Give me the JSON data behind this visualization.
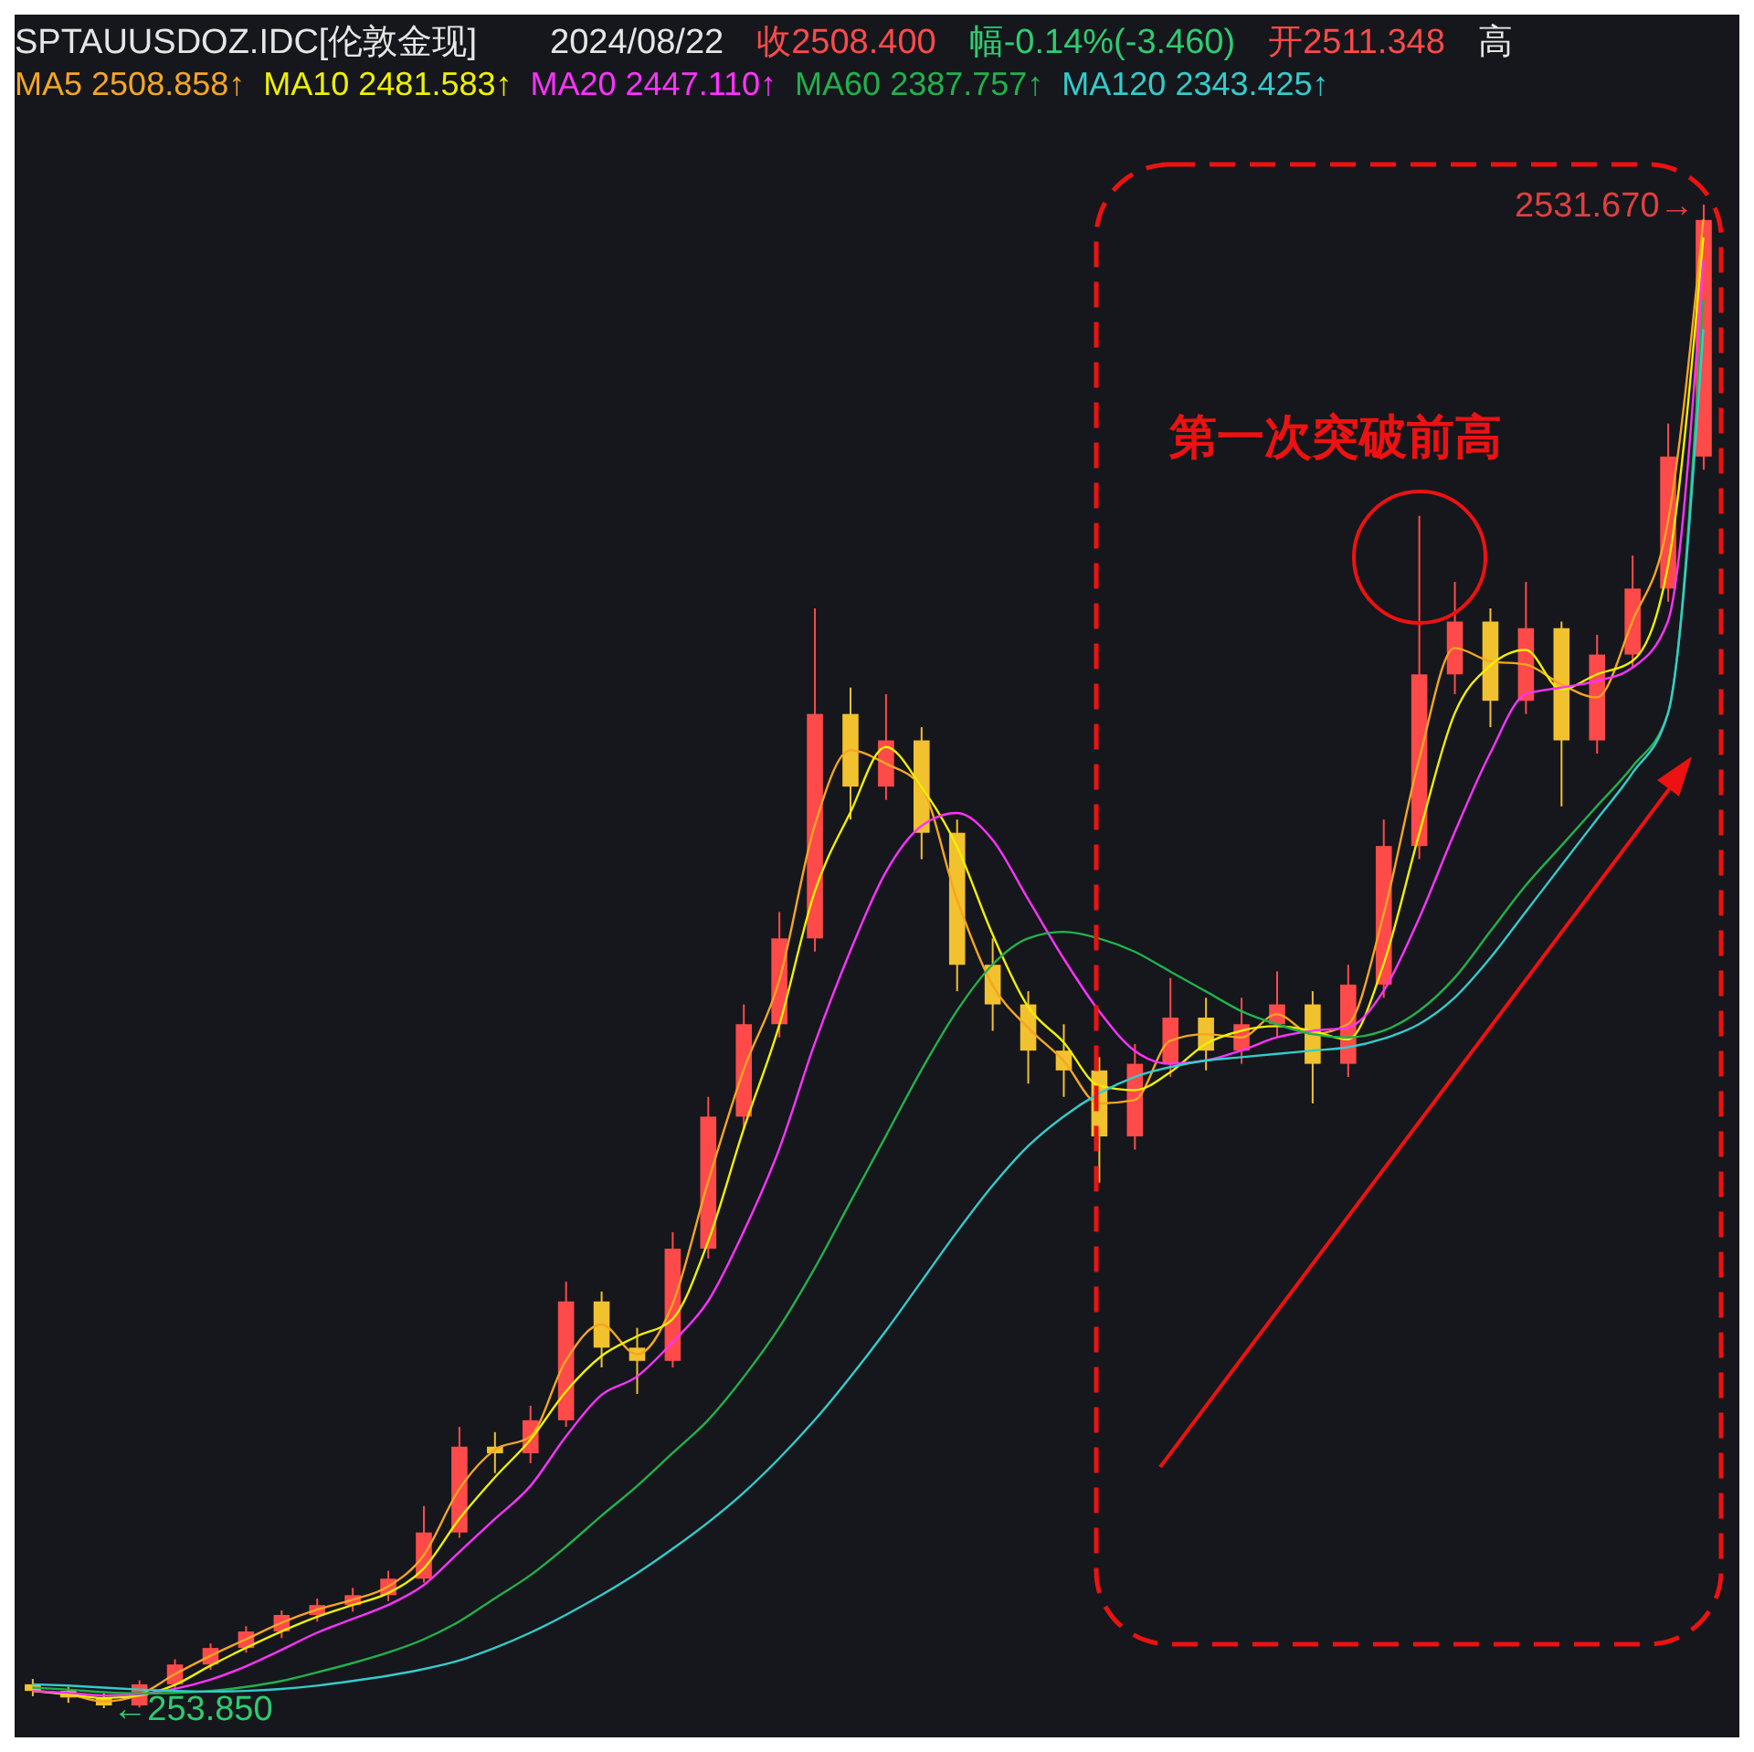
{
  "chart_data": {
    "type": "candlestick",
    "legend": "top left",
    "tick_labels": false,
    "categories": [
      null,
      null,
      null,
      null,
      null,
      null,
      null,
      null,
      null,
      null,
      null,
      null,
      null,
      null,
      null,
      null,
      null,
      null,
      null,
      null,
      null,
      null,
      null,
      null,
      null,
      null,
      null,
      null,
      null,
      null,
      null,
      null,
      null,
      null,
      null,
      null,
      null,
      null,
      null,
      null,
      null,
      null,
      null,
      null,
      null,
      null,
      null,
      null
    ],
    "ohlc": [
      [
        290,
        298,
        272,
        280
      ],
      [
        280,
        286,
        262,
        270
      ],
      [
        270,
        276,
        253.85,
        258
      ],
      [
        258,
        296,
        255,
        290
      ],
      [
        290,
        328,
        284,
        320
      ],
      [
        320,
        352,
        312,
        345
      ],
      [
        345,
        378,
        338,
        370
      ],
      [
        370,
        402,
        360,
        395
      ],
      [
        395,
        420,
        385,
        410
      ],
      [
        410,
        436,
        400,
        425
      ],
      [
        425,
        462,
        416,
        450
      ],
      [
        450,
        560,
        444,
        520
      ],
      [
        520,
        680,
        512,
        650
      ],
      [
        650,
        672,
        610,
        640
      ],
      [
        640,
        712,
        625,
        690
      ],
      [
        690,
        900,
        680,
        870
      ],
      [
        870,
        885,
        770,
        800
      ],
      [
        800,
        830,
        730,
        780
      ],
      [
        780,
        975,
        770,
        950
      ],
      [
        950,
        1180,
        935,
        1150
      ],
      [
        1150,
        1320,
        1130,
        1290
      ],
      [
        1290,
        1460,
        1270,
        1420
      ],
      [
        1420,
        1920,
        1400,
        1760
      ],
      [
        1760,
        1800,
        1600,
        1650
      ],
      [
        1650,
        1790,
        1630,
        1720
      ],
      [
        1720,
        1740,
        1540,
        1580
      ],
      [
        1580,
        1600,
        1340,
        1380
      ],
      [
        1380,
        1420,
        1280,
        1320
      ],
      [
        1320,
        1340,
        1200,
        1250
      ],
      [
        1250,
        1290,
        1180,
        1220
      ],
      [
        1220,
        1240,
        1050,
        1120
      ],
      [
        1120,
        1260,
        1100,
        1230
      ],
      [
        1230,
        1360,
        1210,
        1300
      ],
      [
        1300,
        1330,
        1220,
        1250
      ],
      [
        1250,
        1330,
        1230,
        1290
      ],
      [
        1290,
        1370,
        1270,
        1320
      ],
      [
        1320,
        1340,
        1170,
        1230
      ],
      [
        1230,
        1380,
        1210,
        1350
      ],
      [
        1350,
        1600,
        1330,
        1560
      ],
      [
        1560,
        2060,
        1540,
        1820
      ],
      [
        1820,
        1960,
        1790,
        1900
      ],
      [
        1900,
        1920,
        1740,
        1780
      ],
      [
        1780,
        1960,
        1760,
        1890
      ],
      [
        1890,
        1900,
        1620,
        1720
      ],
      [
        1720,
        1880,
        1700,
        1850
      ],
      [
        1850,
        2000,
        1830,
        1950
      ],
      [
        1950,
        2200,
        1930,
        2150
      ],
      [
        2150,
        2531.67,
        2130,
        2508.4
      ]
    ],
    "colors": [
      "#f2c12e",
      "#f2c12e",
      "#f2c12e",
      "#ff4a4a",
      "#ff4a4a",
      "#ff4a4a",
      "#ff4a4a",
      "#ff4a4a",
      "#ff4a4a",
      "#ff4a4a",
      "#ff4a4a",
      "#ff4a4a",
      "#ff4a4a",
      "#f2c12e",
      "#ff4a4a",
      "#ff4a4a",
      "#f2c12e",
      "#f2c12e",
      "#ff4a4a",
      "#ff4a4a",
      "#ff4a4a",
      "#ff4a4a",
      "#ff4a4a",
      "#f2c12e",
      "#ff4a4a",
      "#f2c12e",
      "#f2c12e",
      "#f2c12e",
      "#f2c12e",
      "#f2c12e",
      "#f2c12e",
      "#ff4a4a",
      "#ff4a4a",
      "#f2c12e",
      "#ff4a4a",
      "#ff4a4a",
      "#f2c12e",
      "#ff4a4a",
      "#ff4a4a",
      "#ff4a4a",
      "#ff4a4a",
      "#f2c12e",
      "#ff4a4a",
      "#f2c12e",
      "#ff4a4a",
      "#ff4a4a",
      "#ff4a4a",
      "#ff4a4a"
    ],
    "series": [
      {
        "type": "line",
        "name": "MA5",
        "color": "#f5a623",
        "values": [
          280,
          275,
          264,
          274,
          305,
          333,
          358,
          383,
          403,
          418,
          438,
          485,
          585,
          645,
          665,
          780,
          835,
          790,
          865,
          1050,
          1220,
          1355,
          1590,
          1705,
          1685,
          1650,
          1480,
          1350,
          1285,
          1235,
          1170,
          1175,
          1265,
          1275,
          1270,
          1305,
          1275,
          1290,
          1455,
          1690,
          1860,
          1840,
          1835,
          1805,
          1785,
          1900,
          2050,
          2509
        ]
      },
      {
        "type": "line",
        "name": "MA10",
        "color": "#f0f000",
        "values": [
          280,
          275,
          269,
          273,
          289,
          318,
          345,
          370,
          392,
          410,
          428,
          465,
          540,
          603,
          660,
          733,
          787,
          817,
          843,
          960,
          1130,
          1287,
          1490,
          1610,
          1710,
          1650,
          1560,
          1427,
          1317,
          1263,
          1197,
          1190,
          1217,
          1260,
          1280,
          1287,
          1280,
          1267,
          1380,
          1577,
          1760,
          1833,
          1857,
          1797,
          1820,
          1840,
          1983,
          2482
        ]
      },
      {
        "type": "line",
        "name": "MA20",
        "color": "#ff33ff",
        "values": [
          280,
          277,
          273,
          275,
          283,
          297,
          317,
          342,
          368,
          389,
          410,
          440,
          490,
          540,
          590,
          665,
          728,
          756,
          808,
          870,
          975,
          1100,
          1260,
          1400,
          1520,
          1590,
          1610,
          1570,
          1480,
          1390,
          1310,
          1250,
          1230,
          1235,
          1250,
          1270,
          1280,
          1285,
          1340,
          1450,
          1580,
          1700,
          1790,
          1800,
          1810,
          1830,
          1900,
          2447
        ]
      },
      {
        "type": "line",
        "name": "MA60",
        "color": "#22b14c",
        "values": [
          285,
          282,
          278,
          276,
          277,
          280,
          286,
          295,
          308,
          322,
          338,
          358,
          385,
          420,
          455,
          498,
          545,
          590,
          640,
          690,
          755,
          830,
          920,
          1020,
          1120,
          1220,
          1310,
          1380,
          1420,
          1430,
          1420,
          1400,
          1370,
          1340,
          1310,
          1290,
          1275,
          1270,
          1280,
          1310,
          1360,
          1430,
          1500,
          1560,
          1620,
          1680,
          1760,
          2388
        ]
      },
      {
        "type": "line",
        "name": "MA120",
        "color": "#33cccc",
        "values": [
          290,
          288,
          285,
          282,
          280,
          279,
          280,
          283,
          288,
          295,
          303,
          313,
          326,
          345,
          368,
          395,
          425,
          458,
          495,
          535,
          580,
          632,
          690,
          755,
          825,
          900,
          975,
          1045,
          1105,
          1150,
          1185,
          1210,
          1225,
          1235,
          1240,
          1245,
          1250,
          1255,
          1268,
          1290,
          1330,
          1390,
          1460,
          1530,
          1600,
          1670,
          1760,
          2343
        ]
      }
    ],
    "annotations": [
      "SPTAUUSDOZ.IDC[伦敦金现]",
      "2024/08/22",
      "收2508.400",
      "幅-0.14%(-3.460)",
      "开2511.348",
      "高",
      "第一次突破前高",
      "2508.858↑",
      "2481.583↑",
      "2447.110↑",
      "2387.757↑",
      "2343.425↑",
      "2531.670→",
      "←253.850"
    ]
  }
}
